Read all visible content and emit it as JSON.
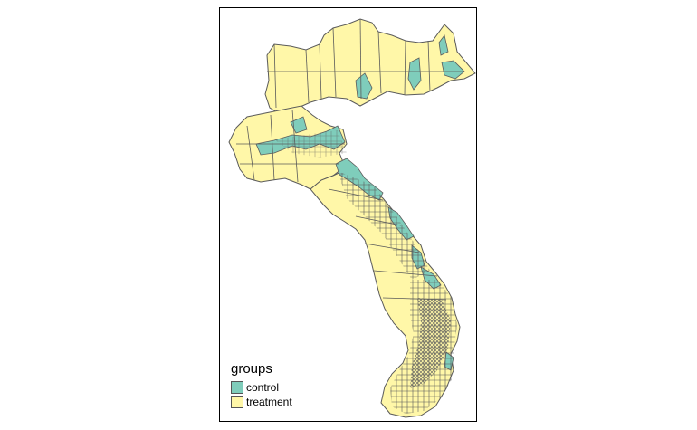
{
  "legend": {
    "title": "groups",
    "items": [
      {
        "label": "control",
        "color": "#7fcdbb"
      },
      {
        "label": "treatment",
        "color": "#fff7a8"
      }
    ]
  },
  "colors": {
    "border": "#5a5a5a",
    "treatment": "#fff7a8",
    "control": "#7fcdbb"
  }
}
